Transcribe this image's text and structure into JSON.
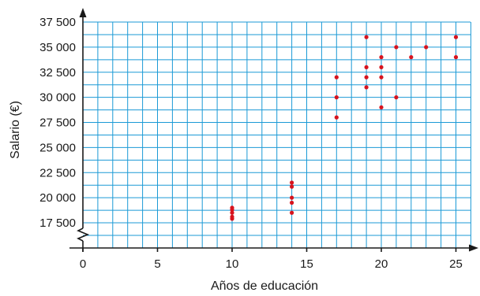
{
  "chart_data": {
    "type": "scatter",
    "xlabel": "Años de educación",
    "ylabel": "Salario (€)",
    "xlim": [
      0,
      26
    ],
    "ylim": [
      17500,
      37500
    ],
    "x_ticks": [
      0,
      5,
      10,
      15,
      20,
      25
    ],
    "x_tick_labels": [
      "0",
      "5",
      "10",
      "15",
      "20",
      "25"
    ],
    "y_ticks": [
      17500,
      20000,
      22500,
      25000,
      27500,
      30000,
      32500,
      35000,
      37500
    ],
    "y_tick_labels": [
      "17 500",
      "20 000",
      "22 500",
      "25 000",
      "27 500",
      "30 000",
      "32 500",
      "35 000",
      "37 500"
    ],
    "y_axis_break": true,
    "grid": true,
    "colors": {
      "grid": "#1b9ad6",
      "points": "#d7141e",
      "axis": "#1a1a1a"
    },
    "points": [
      {
        "x": 10,
        "y": 19000
      },
      {
        "x": 10,
        "y": 18800
      },
      {
        "x": 10,
        "y": 18500
      },
      {
        "x": 10,
        "y": 18100
      },
      {
        "x": 10,
        "y": 17900
      },
      {
        "x": 14,
        "y": 21500
      },
      {
        "x": 14,
        "y": 21100
      },
      {
        "x": 14,
        "y": 20000
      },
      {
        "x": 14,
        "y": 19500
      },
      {
        "x": 14,
        "y": 18500
      },
      {
        "x": 17,
        "y": 32000
      },
      {
        "x": 17,
        "y": 30000
      },
      {
        "x": 17,
        "y": 28000
      },
      {
        "x": 19,
        "y": 36000
      },
      {
        "x": 19,
        "y": 33000
      },
      {
        "x": 19,
        "y": 32000
      },
      {
        "x": 19,
        "y": 31000
      },
      {
        "x": 20,
        "y": 34000
      },
      {
        "x": 20,
        "y": 33000
      },
      {
        "x": 20,
        "y": 32000
      },
      {
        "x": 20,
        "y": 29000
      },
      {
        "x": 21,
        "y": 35000
      },
      {
        "x": 21,
        "y": 30000
      },
      {
        "x": 22,
        "y": 34000
      },
      {
        "x": 23,
        "y": 35000
      },
      {
        "x": 25,
        "y": 36000
      },
      {
        "x": 25,
        "y": 34000
      }
    ]
  }
}
